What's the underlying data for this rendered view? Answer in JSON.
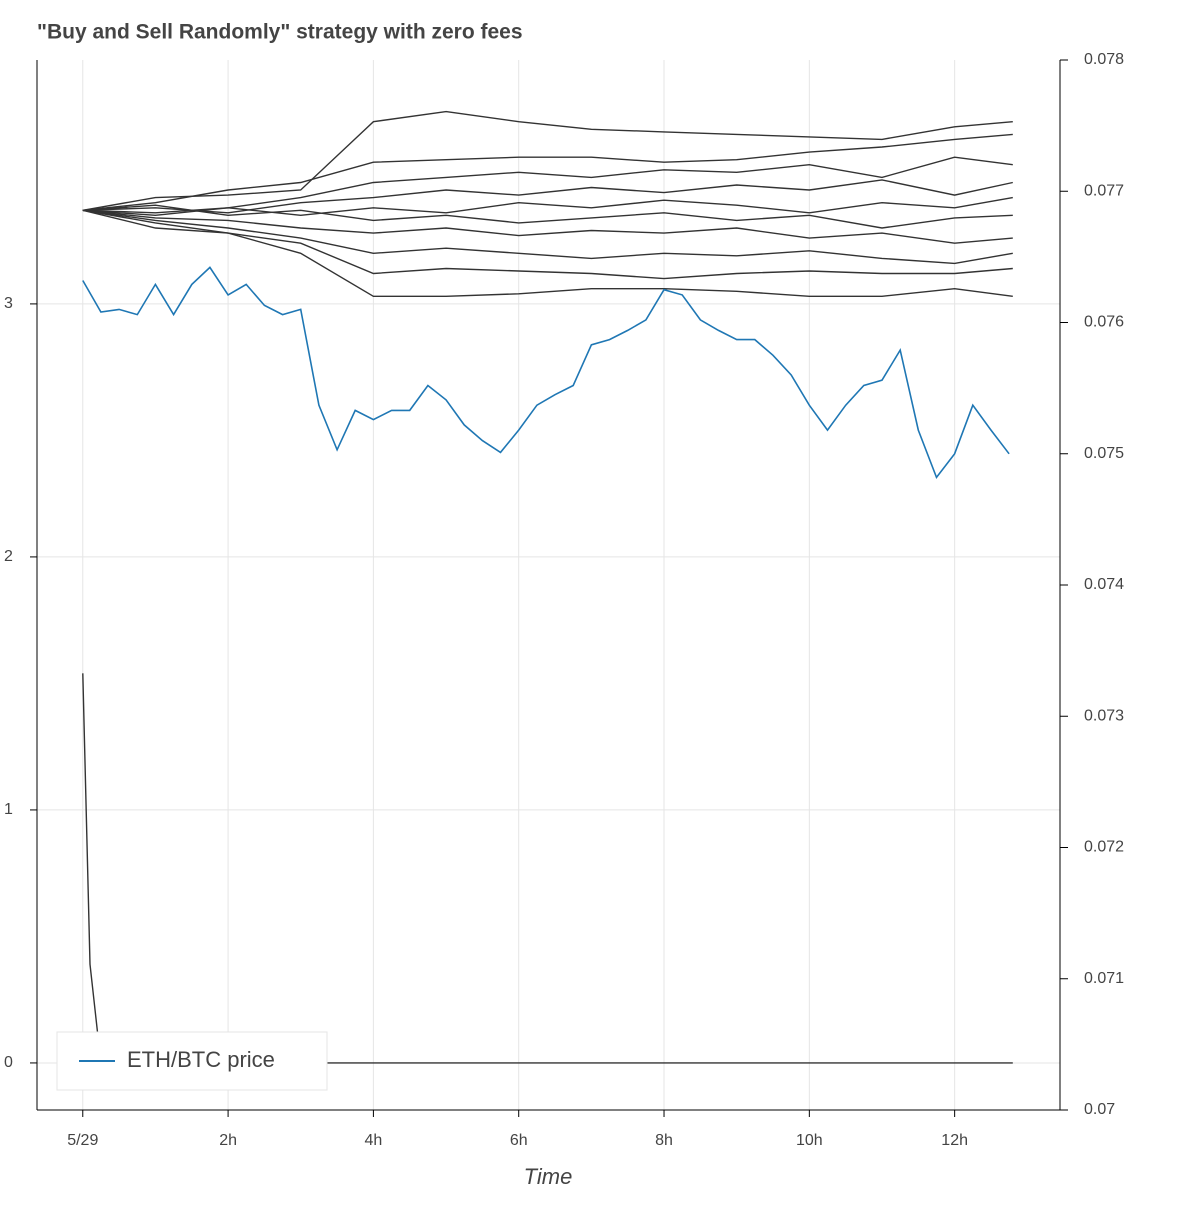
{
  "chart_data": {
    "type": "line",
    "title": "\"Buy and Sell Randomly\" strategy with zero fees",
    "x_label": "Time",
    "xlim": [
      -0.63,
      13.45
    ],
    "xticks": [
      {
        "value": 0,
        "label": "5/29"
      },
      {
        "value": 2,
        "label": "2h"
      },
      {
        "value": 4,
        "label": "4h"
      },
      {
        "value": 6,
        "label": "6h"
      },
      {
        "value": 8,
        "label": "8h"
      },
      {
        "value": 10,
        "label": "10h"
      },
      {
        "value": 12,
        "label": "12h"
      }
    ],
    "ylim": [
      -0.186,
      3.964
    ],
    "yticks": [
      0,
      1,
      2,
      3
    ],
    "y2lim": [
      0.07,
      0.078
    ],
    "y2ticks": [
      0.07,
      0.071,
      0.072,
      0.073,
      0.074,
      0.075,
      0.076,
      0.077,
      0.078
    ],
    "grid": true,
    "legend": "bottom-left",
    "series": [
      {
        "color": "#333333",
        "x": [
          0,
          1,
          2,
          3,
          4,
          5,
          6,
          7,
          8,
          9,
          10,
          11,
          12,
          12.8
        ],
        "values": [
          3.37,
          3.42,
          3.43,
          3.45,
          3.72,
          3.76,
          3.72,
          3.69,
          3.68,
          3.67,
          3.66,
          3.65,
          3.7,
          3.72
        ]
      },
      {
        "color": "#333333",
        "x": [
          0,
          1,
          2,
          3,
          4,
          5,
          6,
          7,
          8,
          9,
          10,
          11,
          12,
          12.8
        ],
        "values": [
          3.37,
          3.4,
          3.45,
          3.48,
          3.56,
          3.57,
          3.58,
          3.58,
          3.56,
          3.57,
          3.6,
          3.62,
          3.65,
          3.67
        ]
      },
      {
        "color": "#333333",
        "x": [
          0,
          1,
          2,
          3,
          4,
          5,
          6,
          7,
          8,
          9,
          10,
          11,
          12,
          12.8
        ],
        "values": [
          3.37,
          3.35,
          3.38,
          3.42,
          3.48,
          3.5,
          3.52,
          3.5,
          3.53,
          3.52,
          3.55,
          3.5,
          3.58,
          3.55
        ]
      },
      {
        "color": "#333333",
        "x": [
          0,
          1,
          2,
          3,
          4,
          5,
          6,
          7,
          8,
          9,
          10,
          11,
          12,
          12.8
        ],
        "values": [
          3.37,
          3.38,
          3.36,
          3.4,
          3.42,
          3.45,
          3.43,
          3.46,
          3.44,
          3.47,
          3.45,
          3.49,
          3.43,
          3.48
        ]
      },
      {
        "color": "#333333",
        "x": [
          0,
          1,
          2,
          3,
          4,
          5,
          6,
          7,
          8,
          9,
          10,
          11,
          12,
          12.8
        ],
        "values": [
          3.37,
          3.36,
          3.38,
          3.35,
          3.38,
          3.36,
          3.4,
          3.38,
          3.41,
          3.39,
          3.36,
          3.4,
          3.38,
          3.42
        ]
      },
      {
        "color": "#333333",
        "x": [
          0,
          1,
          2,
          3,
          4,
          5,
          6,
          7,
          8,
          9,
          10,
          11,
          12,
          12.8
        ],
        "values": [
          3.37,
          3.39,
          3.35,
          3.37,
          3.33,
          3.35,
          3.32,
          3.34,
          3.36,
          3.33,
          3.35,
          3.3,
          3.34,
          3.35
        ]
      },
      {
        "color": "#333333",
        "x": [
          0,
          1,
          2,
          3,
          4,
          5,
          6,
          7,
          8,
          9,
          10,
          11,
          12,
          12.8
        ],
        "values": [
          3.37,
          3.34,
          3.33,
          3.3,
          3.28,
          3.3,
          3.27,
          3.29,
          3.28,
          3.3,
          3.26,
          3.28,
          3.24,
          3.26
        ]
      },
      {
        "color": "#333333",
        "x": [
          0,
          1,
          2,
          3,
          4,
          5,
          6,
          7,
          8,
          9,
          10,
          11,
          12,
          12.8
        ],
        "values": [
          3.37,
          3.33,
          3.3,
          3.26,
          3.2,
          3.22,
          3.2,
          3.18,
          3.2,
          3.19,
          3.21,
          3.18,
          3.16,
          3.2
        ]
      },
      {
        "color": "#333333",
        "x": [
          0,
          1,
          2,
          3,
          4,
          5,
          6,
          7,
          8,
          9,
          10,
          11,
          12,
          12.8
        ],
        "values": [
          3.37,
          3.32,
          3.28,
          3.24,
          3.12,
          3.14,
          3.13,
          3.12,
          3.1,
          3.12,
          3.13,
          3.12,
          3.12,
          3.14
        ]
      },
      {
        "color": "#333333",
        "x": [
          0,
          1,
          2,
          3,
          4,
          5,
          6,
          7,
          8,
          9,
          10,
          11,
          12,
          12.8
        ],
        "values": [
          3.37,
          3.3,
          3.28,
          3.2,
          3.03,
          3.03,
          3.04,
          3.06,
          3.06,
          3.05,
          3.03,
          3.03,
          3.06,
          3.03
        ]
      },
      {
        "color": "#333333",
        "x": [
          0,
          0.1,
          0.25,
          12.8
        ],
        "values": [
          1.54,
          0.39,
          0,
          0
        ]
      },
      {
        "name": "ETH/BTC price",
        "color": "#1f77b4",
        "axis": "y2",
        "x": [
          0,
          0.25,
          0.5,
          0.75,
          1,
          1.25,
          1.5,
          1.75,
          2,
          2.25,
          2.5,
          2.75,
          3,
          3.25,
          3.5,
          3.75,
          4,
          4.25,
          4.5,
          4.75,
          5,
          5.25,
          5.5,
          5.75,
          6,
          6.25,
          6.5,
          6.75,
          7,
          7.25,
          7.5,
          7.75,
          8,
          8.25,
          8.5,
          8.75,
          9,
          9.25,
          9.5,
          9.75,
          10,
          10.25,
          10.5,
          10.75,
          11,
          11.25,
          11.5,
          11.75,
          12,
          12.25,
          12.5,
          12.75
        ],
        "values": [
          0.07632,
          0.07608,
          0.0761,
          0.07606,
          0.07629,
          0.07606,
          0.07629,
          0.07642,
          0.07621,
          0.07629,
          0.07613,
          0.07606,
          0.0761,
          0.07537,
          0.07503,
          0.07533,
          0.07526,
          0.07533,
          0.07533,
          0.07552,
          0.07541,
          0.07522,
          0.0751,
          0.07501,
          0.07518,
          0.07537,
          0.07545,
          0.07552,
          0.07583,
          0.07587,
          0.07594,
          0.07602,
          0.07625,
          0.07621,
          0.07602,
          0.07594,
          0.07587,
          0.07587,
          0.07575,
          0.0756,
          0.07537,
          0.07518,
          0.07537,
          0.07552,
          0.07556,
          0.07579,
          0.07518,
          0.07482,
          0.075,
          0.07537,
          0.07518,
          0.075
        ]
      }
    ]
  }
}
